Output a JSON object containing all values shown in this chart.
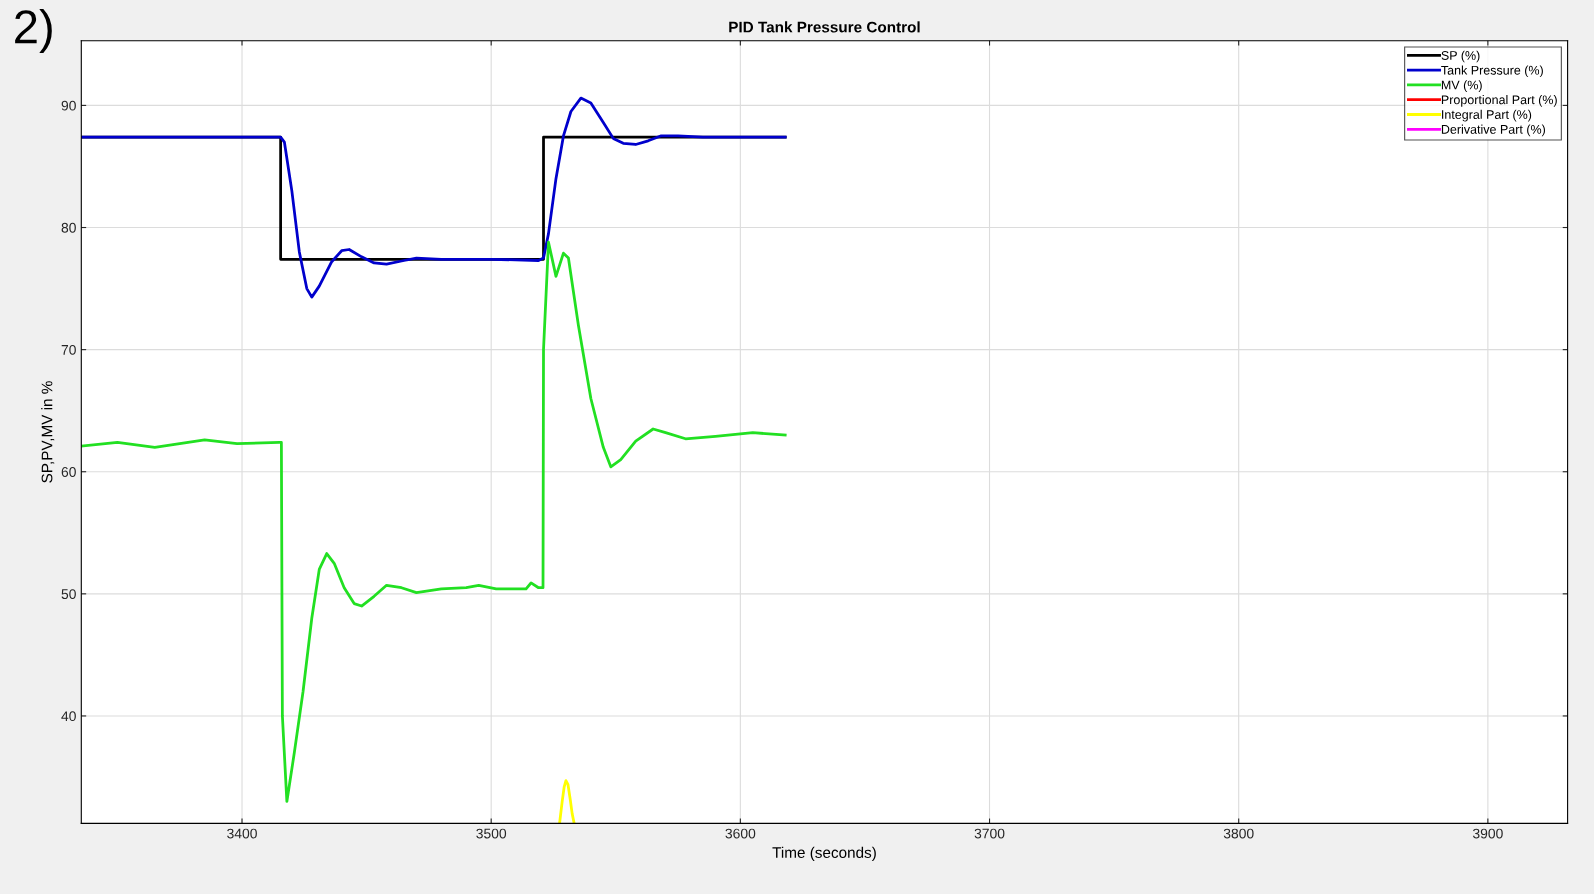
{
  "chart_data": {
    "type": "line",
    "title": "PID Tank Pressure Control",
    "xlabel": "Time (seconds)",
    "ylabel": "SP,PV,MV in %",
    "annotations": [
      "2)"
    ],
    "xlim": [
      3335.5,
      3932
    ],
    "ylim": [
      31.2,
      95.3
    ],
    "xticks": [
      3400,
      3500,
      3600,
      3700,
      3800,
      3900
    ],
    "yticks": [
      40,
      50,
      60,
      70,
      80,
      90
    ],
    "grid": true,
    "legend": "top right",
    "line_style": "solid",
    "marker": "none",
    "series": [
      {
        "name": "SP (%)",
        "color": "#000000",
        "x": [
          3335.5,
          3415.5,
          3415.5,
          3521,
          3521,
          3618
        ],
        "values": [
          87.4,
          87.4,
          77.4,
          77.4,
          87.4,
          87.4
        ]
      },
      {
        "name": "Tank Pressure (%)",
        "color": "#0000cc",
        "x": [
          3335.5,
          3360,
          3390,
          3415.5,
          3417,
          3420,
          3423,
          3426,
          3428,
          3431,
          3436,
          3440,
          3443,
          3448,
          3453,
          3458,
          3465,
          3470,
          3480,
          3500,
          3519,
          3521,
          3523,
          3526,
          3529,
          3532,
          3536,
          3540,
          3545,
          3549,
          3553,
          3558,
          3563,
          3568,
          3575,
          3585,
          3618
        ],
        "values": [
          87.4,
          87.4,
          87.4,
          87.4,
          87.0,
          83,
          78,
          75,
          74.3,
          75.2,
          77.2,
          78.1,
          78.2,
          77.6,
          77.1,
          77.0,
          77.3,
          77.5,
          77.4,
          77.4,
          77.3,
          77.5,
          79.5,
          84,
          87.5,
          89.5,
          90.6,
          90.2,
          88.6,
          87.3,
          86.9,
          86.8,
          87.1,
          87.5,
          87.5,
          87.4,
          87.4
        ]
      },
      {
        "name": "MV (%)",
        "color": "#22e022",
        "x": [
          3335.5,
          3350,
          3365,
          3385,
          3398,
          3415,
          3415.8,
          3416.2,
          3418,
          3421,
          3424.5,
          3428,
          3431,
          3434,
          3437,
          3441,
          3445,
          3448,
          3453,
          3458,
          3464,
          3470,
          3480,
          3490,
          3495,
          3502,
          3514,
          3516,
          3519,
          3520.8,
          3521,
          3523,
          3526,
          3529,
          3531,
          3535,
          3540,
          3545,
          3548,
          3552,
          3558,
          3565,
          3570,
          3578,
          3590,
          3605,
          3618
        ],
        "values": [
          62.1,
          62.4,
          62.0,
          62.6,
          62.3,
          62.4,
          62.4,
          40,
          33,
          37,
          42,
          48,
          52,
          53.3,
          52.5,
          50.5,
          49.2,
          49.0,
          49.8,
          50.7,
          50.5,
          50.1,
          50.4,
          50.5,
          50.7,
          50.4,
          50.4,
          50.9,
          50.5,
          50.5,
          70,
          78.8,
          76.0,
          77.9,
          77.5,
          72,
          66,
          62,
          60.4,
          61,
          62.5,
          63.5,
          63.2,
          62.7,
          62.9,
          63.2,
          63.0
        ]
      },
      {
        "name": "Proportional Part (%)",
        "color": "#ff0000"
      },
      {
        "name": "Integral Part (%)",
        "color": "#ffff00",
        "x": [
          3527.5,
          3528.5,
          3529.3,
          3530,
          3530.8,
          3531.7,
          3532.5,
          3533.2
        ],
        "values": [
          31.3,
          33.0,
          34.2,
          34.7,
          34.4,
          33.2,
          32.0,
          31.3
        ]
      },
      {
        "name": "Derivative Part (%)",
        "color": "#ff00ff"
      }
    ]
  }
}
